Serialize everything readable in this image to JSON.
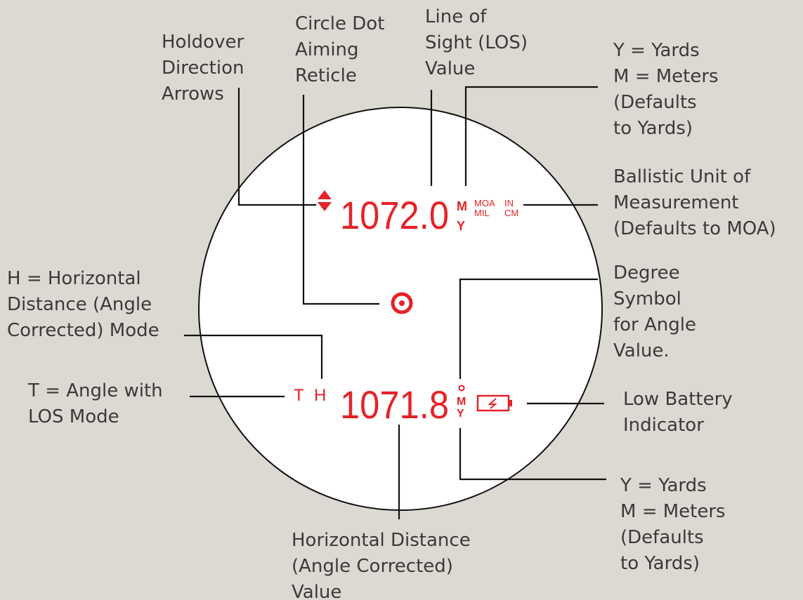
{
  "callouts": [
    {
      "lines": [
        "Holdover",
        "Direction",
        "Arrows"
      ]
    },
    {
      "lines": [
        "Circle Dot",
        "Aiming",
        "Reticle"
      ]
    },
    {
      "lines": [
        "Line of",
        "Sight (LOS)",
        "Value"
      ]
    },
    {
      "lines": [
        "Y = Yards",
        "M = Meters",
        "(Defaults",
        "to Yards)"
      ]
    },
    {
      "lines": [
        "Ballistic Unit of",
        "Measurement",
        "(Defaults to MOA)"
      ]
    },
    {
      "lines": [
        "Degree",
        "Symbol",
        "for Angle",
        "Value."
      ]
    },
    {
      "lines": [
        "H = Horizontal",
        "Distance (Angle",
        "Corrected) Mode"
      ]
    },
    {
      "lines": [
        "T = Angle with",
        "LOS Mode"
      ]
    },
    {
      "lines": [
        "Low Battery",
        "Indicator"
      ]
    },
    {
      "lines": [
        "Y = Yards",
        "M = Meters",
        "(Defaults",
        "to Yards)"
      ]
    },
    {
      "lines": [
        "Horizontal Distance",
        "(Angle Corrected)",
        "Value"
      ]
    }
  ],
  "display": {
    "los_value": "1072.0",
    "los_units": [
      "M",
      "Y"
    ],
    "ballistic_units": [
      "MOA",
      "MIL",
      "IN",
      "CM"
    ],
    "modes": [
      "T",
      "H"
    ],
    "hd_value": "1071.8",
    "hd_units": [
      "M",
      "Y"
    ]
  }
}
